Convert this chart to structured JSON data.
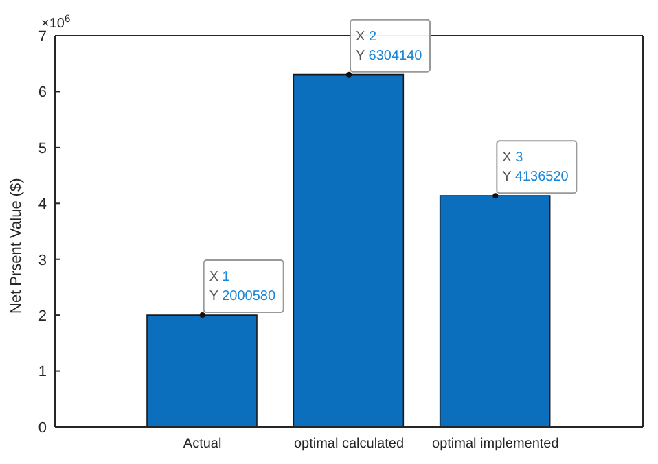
{
  "chart_data": {
    "type": "bar",
    "ylabel": "Net Prsent Value ($)",
    "categories": [
      "Actual",
      "optimal calculated",
      "optimal implemented"
    ],
    "values": [
      2.00058,
      6.30414,
      4.13652
    ],
    "color": "#0b6fbd",
    "ylim": [
      0,
      7
    ],
    "yticks": [
      0,
      1,
      2,
      3,
      4,
      5,
      6,
      7
    ],
    "grid": false,
    "legend": false,
    "annotations": [
      "×10$^{6}$",
      {
        "text": "X 1\nY 2000580",
        "x": "Actual",
        "y": 2.00058
      },
      {
        "text": "X 2\nY 6304140",
        "x": "optimal calculated",
        "y": 6.30414
      },
      {
        "text": "X 3\nY 4136520",
        "x": "optimal implemented",
        "y": 4.13652
      }
    ]
  }
}
